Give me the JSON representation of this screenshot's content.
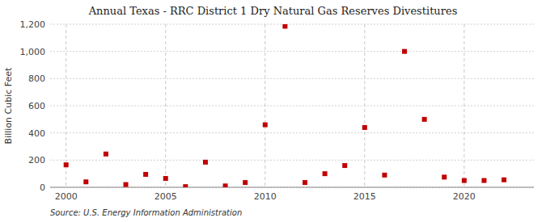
{
  "chart_data": {
    "type": "scatter",
    "title": "Annual Texas - RRC District 1 Dry Natural Gas Reserves Divestitures",
    "ylabel": "Billion Cubic Feet",
    "annotations": [
      "Source: U.S. Energy Information Administration"
    ],
    "x": [
      2000,
      2001,
      2002,
      2003,
      2004,
      2005,
      2006,
      2007,
      2008,
      2009,
      2010,
      2011,
      2012,
      2013,
      2014,
      2015,
      2016,
      2017,
      2018,
      2019,
      2020,
      2021,
      2022
    ],
    "values": [
      165,
      40,
      245,
      20,
      95,
      65,
      5,
      185,
      10,
      35,
      460,
      1185,
      35,
      100,
      160,
      440,
      90,
      1000,
      500,
      75,
      50,
      50,
      55
    ],
    "color": "#c00000",
    "marker": "square",
    "xlim": [
      1999.2,
      2023.5
    ],
    "xticks": [
      2000,
      2005,
      2010,
      2015,
      2020
    ],
    "ylim": [
      0,
      1200
    ],
    "yticks": [
      0,
      200,
      400,
      600,
      800,
      {
        "value": 1000,
        "label": "1,000"
      },
      {
        "value": 1200,
        "label": "1,200"
      }
    ],
    "grid": true
  }
}
